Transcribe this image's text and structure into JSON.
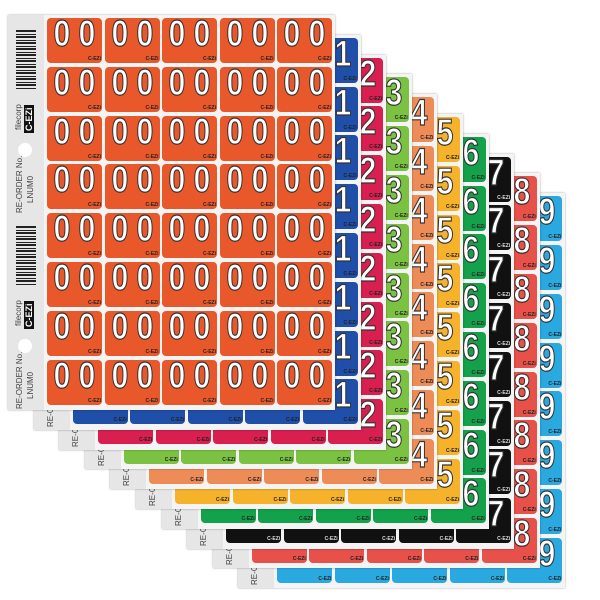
{
  "label_mark": "C-EZi",
  "strip": {
    "brand": "filecorp",
    "logo": "C-EZi",
    "reorder": "RE-ORDER No.",
    "code": "LNUM0",
    "reorder_short": "RE-O"
  },
  "sheets": [
    {
      "digit": "0",
      "color": "#e8582a"
    },
    {
      "digit": "1",
      "color": "#1f4fa8"
    },
    {
      "digit": "2",
      "color": "#d81f4f"
    },
    {
      "digit": "3",
      "color": "#7cc242"
    },
    {
      "digit": "4",
      "color": "#ee8c58"
    },
    {
      "digit": "5",
      "color": "#f5b22a"
    },
    {
      "digit": "6",
      "color": "#13a14b"
    },
    {
      "digit": "7",
      "color": "#111111"
    },
    {
      "digit": "8",
      "color": "#e8504a"
    },
    {
      "digit": "9",
      "color": "#2aa9e0"
    }
  ]
}
